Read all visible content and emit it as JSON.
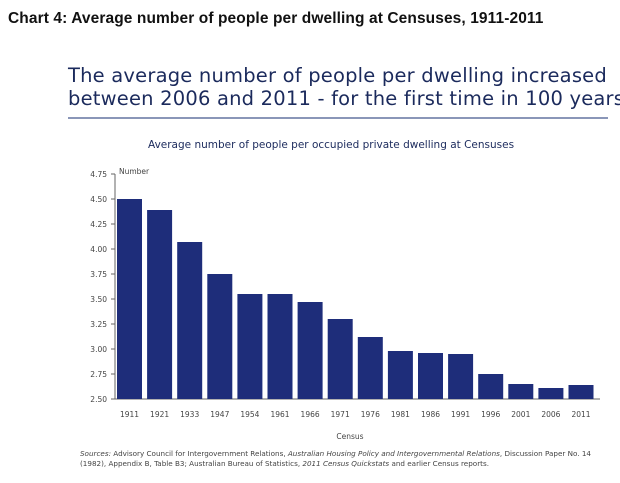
{
  "header": {
    "chart_label": "Chart 4: Average number of people per dwelling at Censuses, 1911-2011"
  },
  "headline": {
    "line1": "The average number of people per dwelling increased",
    "line2": "between 2006 and 2011 - for the first time in 100 years"
  },
  "colors": {
    "bar": "#1e2d7a",
    "text": "#1b2a5c"
  },
  "chart_data": {
    "type": "bar",
    "title": "Average number of people per occupied private dwelling at Censuses",
    "xlabel": "Census",
    "ylabel": "Number",
    "ylim": [
      2.5,
      4.75
    ],
    "yticks": [
      "2.50",
      "2.75",
      "3.00",
      "3.25",
      "3.50",
      "3.75",
      "4.00",
      "4.25",
      "4.50",
      "4.75"
    ],
    "categories": [
      "1911",
      "1921",
      "1933",
      "1947",
      "1954",
      "1961",
      "1966",
      "1971",
      "1976",
      "1981",
      "1986",
      "1991",
      "1996",
      "2001",
      "2006",
      "2011"
    ],
    "values": [
      4.5,
      4.39,
      4.07,
      3.75,
      3.55,
      3.55,
      3.47,
      3.3,
      3.12,
      2.98,
      2.96,
      2.95,
      2.75,
      2.65,
      2.61,
      2.64
    ],
    "grid": false,
    "legend": "none"
  },
  "sources": {
    "label": "Sources:",
    "part1": " Advisory Council for Intergovernment Relations, ",
    "italic1": "Australian Housing Policy and Intergovernmental Relations",
    "part2": ", Discussion Paper No. 14 (1982), Appendix B, Table B3; Australian Bureau of Statistics, ",
    "italic2": "2011 Census Quickstats",
    "part3": " and earlier Census reports."
  }
}
